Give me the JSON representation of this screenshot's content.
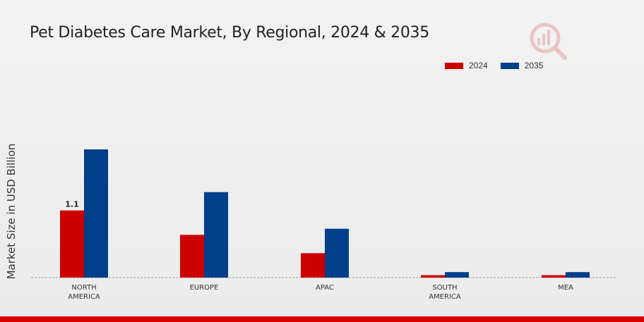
{
  "chart_data": {
    "type": "bar",
    "title": "Pet Diabetes Care Market, By Regional, 2024 & 2035",
    "xlabel": "",
    "ylabel": "Market Size in USD Billion",
    "categories": [
      [
        "NORTH",
        "AMERICA"
      ],
      [
        "EUROPE"
      ],
      [
        "APAC"
      ],
      [
        "SOUTH",
        "AMERICA"
      ],
      [
        "MEA"
      ]
    ],
    "series": [
      {
        "name": "2024",
        "color": "#cc0000",
        "values": [
          1.1,
          0.7,
          0.4,
          0.04,
          0.04
        ]
      },
      {
        "name": "2035",
        "color": "#003f8a",
        "values": [
          2.1,
          1.4,
          0.8,
          0.09,
          0.09
        ]
      }
    ],
    "data_labels": [
      {
        "series": 0,
        "category": 0,
        "text": "1.1"
      }
    ],
    "ylim": [
      0,
      4.2
    ],
    "grid": false,
    "legend_position": "top-right"
  },
  "logo_icon": "magnifier-chart-logo"
}
